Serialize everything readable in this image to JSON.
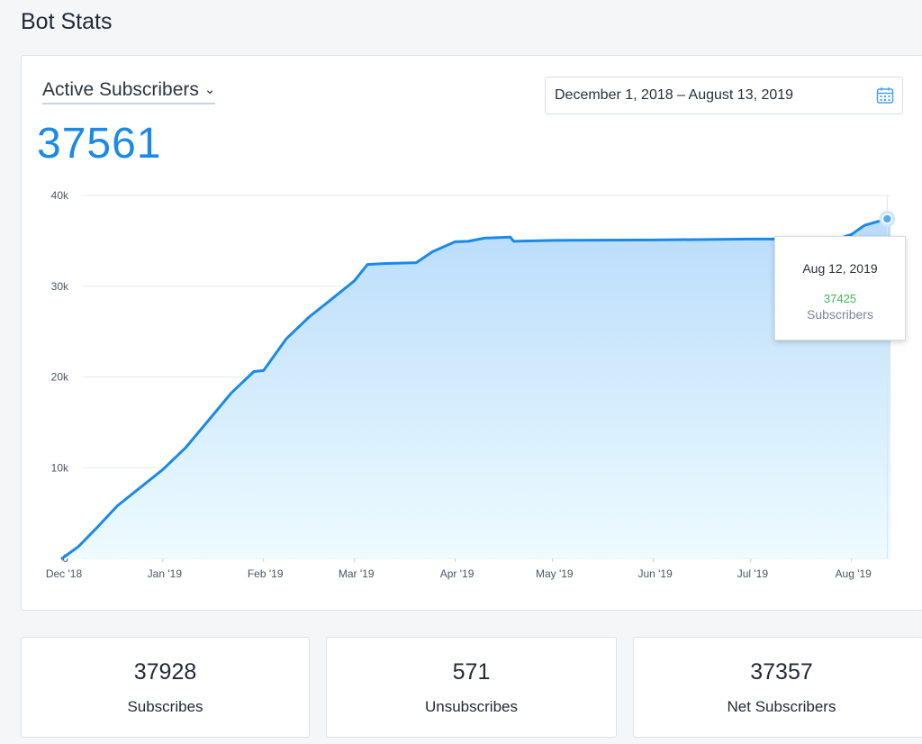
{
  "page": {
    "title": "Bot Stats"
  },
  "metric_select": {
    "label": "Active Subscribers"
  },
  "big_number": "37561",
  "date_range": {
    "value": "December 1, 2018 – August 13, 2019"
  },
  "tooltip": {
    "date": "Aug 12, 2019",
    "value": "37425",
    "label": "Subscribers"
  },
  "stats": [
    {
      "value": "37928",
      "label": "Subscribes"
    },
    {
      "value": "571",
      "label": "Unsubscribes"
    },
    {
      "value": "37357",
      "label": "Net Subscribers"
    }
  ],
  "colors": {
    "accent": "#1b8ae6",
    "tooltip_value": "#3cb85b",
    "area_top": "#b9dcfb",
    "area_bottom": "#eefbff"
  },
  "chart_data": {
    "type": "area",
    "x_tick_labels": [
      "Dec '18",
      "Jan '19",
      "Feb '19",
      "Mar '19",
      "Apr '19",
      "May '19",
      "Jun '19",
      "Jul '19",
      "Aug '19"
    ],
    "y_tick_labels": [
      "0",
      "10k",
      "20k",
      "30k",
      "40k"
    ],
    "ylim": [
      0,
      40000
    ],
    "xlim": [
      "2018-12-01",
      "2019-08-13"
    ],
    "grid": true,
    "series": [
      {
        "x": [
          "2018-12-01",
          "2018-12-06",
          "2018-12-12",
          "2018-12-18",
          "2018-12-25",
          "2019-01-01",
          "2019-01-08",
          "2019-01-15",
          "2019-01-22",
          "2019-01-29",
          "2019-02-01",
          "2019-02-08",
          "2019-02-15",
          "2019-02-22",
          "2019-03-01",
          "2019-03-05",
          "2019-03-10",
          "2019-03-20",
          "2019-03-25",
          "2019-04-01",
          "2019-04-05",
          "2019-04-10",
          "2019-04-18",
          "2019-04-19",
          "2019-05-01",
          "2019-06-01",
          "2019-07-01",
          "2019-07-20",
          "2019-07-28",
          "2019-08-01",
          "2019-08-05",
          "2019-08-12",
          "2019-08-13"
        ],
        "y": [
          0,
          1300,
          3500,
          5800,
          7800,
          9800,
          12200,
          15200,
          18200,
          20600,
          20700,
          24200,
          26600,
          28600,
          30600,
          32400,
          32500,
          32600,
          33800,
          34900,
          34950,
          35300,
          35400,
          34950,
          35050,
          35100,
          35200,
          35200,
          35250,
          35700,
          36700,
          37425,
          37561
        ]
      }
    ],
    "tooltip_point": {
      "x": "2019-08-12",
      "y": 37425
    }
  }
}
